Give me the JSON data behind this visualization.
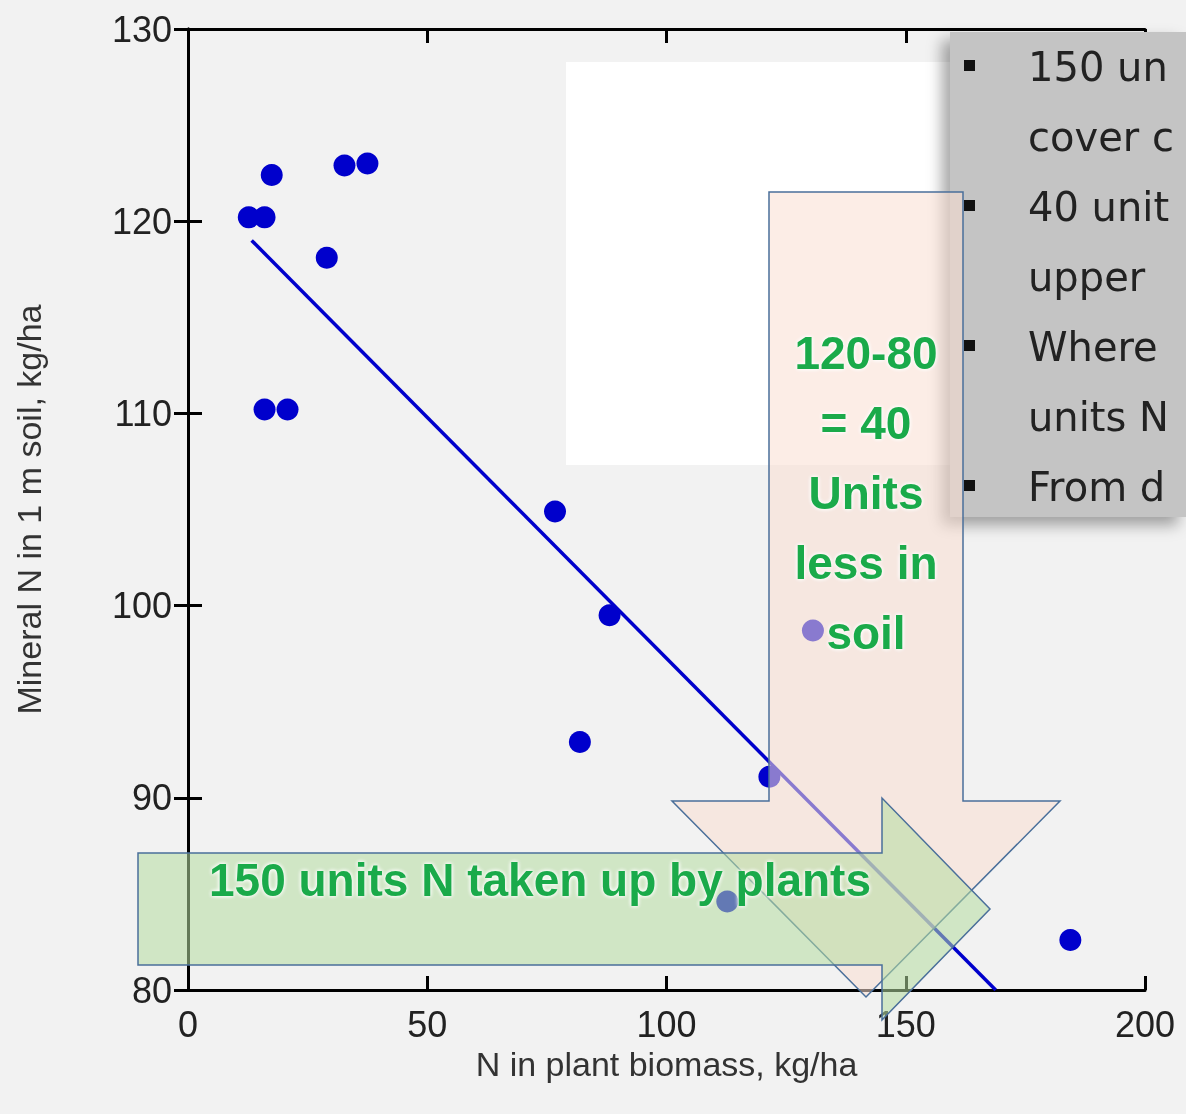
{
  "chart_data": {
    "type": "scatter",
    "xlabel": "N in plant biomass, kg/ha",
    "ylabel": "Mineral N in 1 m soil, kg/ha",
    "xlim": [
      0,
      200
    ],
    "xticks": [
      0,
      50,
      100,
      150,
      200
    ],
    "ylim": [
      80,
      130
    ],
    "yticks": [
      80,
      90,
      100,
      110,
      120,
      130
    ],
    "grid": false,
    "marker": "circle",
    "series": [
      {
        "color": "#0000cc",
        "x": [
          12.7,
          16.0,
          17.5,
          16.0,
          20.8,
          29.0,
          32.7,
          37.5,
          76.7,
          88.1,
          81.9,
          130.6,
          121.5,
          112.7,
          184.4
        ],
        "values": [
          120.2,
          120.2,
          122.4,
          110.2,
          110.2,
          118.1,
          122.9,
          123.0,
          104.9,
          99.5,
          92.9,
          98.7,
          91.1,
          84.6,
          82.6
        ]
      },
      {
        "type": "line",
        "color": "#0000cc",
        "line_style": "solid",
        "marker": "none",
        "x": [
          13.3,
          168.8
        ],
        "values": [
          119.0,
          80.0
        ]
      }
    ],
    "annotations": [
      "150 un\ncover c",
      "40 unit\nupper",
      "Where\nunits N",
      "From d",
      "120-80 = 40 Units less in soil",
      "150 units N taken up by plants"
    ]
  }
}
